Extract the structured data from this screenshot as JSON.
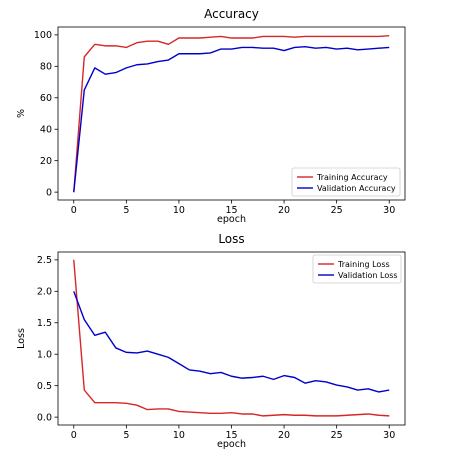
{
  "chart_data": [
    {
      "type": "line",
      "title": "Accuracy",
      "xlabel": "epoch",
      "ylabel": "%",
      "xlim": [
        0,
        30
      ],
      "ylim": [
        0,
        100
      ],
      "xticks": [
        0,
        5,
        10,
        15,
        20,
        25,
        30
      ],
      "yticks": [
        0,
        20,
        40,
        60,
        80,
        100
      ],
      "grid": false,
      "legend_position": "lower-right",
      "series": [
        {
          "name": "Training Accuracy",
          "color": "#d62728",
          "x": [
            0,
            1,
            2,
            3,
            4,
            5,
            6,
            7,
            8,
            9,
            10,
            11,
            12,
            13,
            14,
            15,
            16,
            17,
            18,
            19,
            20,
            21,
            22,
            23,
            24,
            25,
            26,
            27,
            28,
            29,
            30
          ],
          "values": [
            0,
            86,
            94,
            93,
            93,
            92,
            95,
            96,
            96,
            94,
            98,
            98,
            98,
            98.5,
            99,
            98,
            98,
            98,
            99,
            99,
            99,
            98.5,
            99,
            99,
            99,
            99,
            99,
            99,
            99,
            99,
            99.5
          ]
        },
        {
          "name": "Validation Accuracy",
          "color": "#0000cc",
          "x": [
            0,
            1,
            2,
            3,
            4,
            5,
            6,
            7,
            8,
            9,
            10,
            11,
            12,
            13,
            14,
            15,
            16,
            17,
            18,
            19,
            20,
            21,
            22,
            23,
            24,
            25,
            26,
            27,
            28,
            29,
            30
          ],
          "values": [
            0,
            65,
            79,
            75,
            76,
            79,
            81,
            81.5,
            83,
            84,
            88,
            88,
            88,
            88.5,
            91,
            91,
            92,
            92,
            91.5,
            91.5,
            90,
            92,
            92.5,
            91.5,
            92,
            91,
            91.5,
            90.5,
            91,
            91.5,
            92
          ]
        }
      ]
    },
    {
      "type": "line",
      "title": "Loss",
      "xlabel": "epoch",
      "ylabel": "Loss",
      "xlim": [
        0,
        30
      ],
      "ylim": [
        0,
        2.5
      ],
      "xticks": [
        0,
        5,
        10,
        15,
        20,
        25,
        30
      ],
      "yticks": [
        0.0,
        0.5,
        1.0,
        1.5,
        2.0,
        2.5
      ],
      "ytick_labels": [
        "0.0",
        "0.5",
        "1.0",
        "1.5",
        "2.0",
        "2.5"
      ],
      "grid": false,
      "legend_position": "top-right",
      "series": [
        {
          "name": "Training Loss",
          "color": "#d62728",
          "x": [
            0,
            1,
            2,
            3,
            4,
            5,
            6,
            7,
            8,
            9,
            10,
            11,
            12,
            13,
            14,
            15,
            16,
            17,
            18,
            19,
            20,
            21,
            22,
            23,
            24,
            25,
            26,
            27,
            28,
            29,
            30
          ],
          "values": [
            2.5,
            0.43,
            0.23,
            0.23,
            0.23,
            0.22,
            0.19,
            0.12,
            0.13,
            0.13,
            0.09,
            0.08,
            0.07,
            0.06,
            0.06,
            0.07,
            0.05,
            0.05,
            0.02,
            0.03,
            0.04,
            0.03,
            0.03,
            0.02,
            0.02,
            0.02,
            0.03,
            0.04,
            0.05,
            0.03,
            0.02
          ]
        },
        {
          "name": "Validation Loss",
          "color": "#0000cc",
          "x": [
            0,
            1,
            2,
            3,
            4,
            5,
            6,
            7,
            8,
            9,
            10,
            11,
            12,
            13,
            14,
            15,
            16,
            17,
            18,
            19,
            20,
            21,
            22,
            23,
            24,
            25,
            26,
            27,
            28,
            29,
            30
          ],
          "values": [
            2.0,
            1.55,
            1.3,
            1.35,
            1.1,
            1.03,
            1.02,
            1.05,
            1.0,
            0.95,
            0.85,
            0.75,
            0.73,
            0.69,
            0.71,
            0.65,
            0.62,
            0.63,
            0.65,
            0.6,
            0.66,
            0.63,
            0.54,
            0.58,
            0.56,
            0.51,
            0.48,
            0.43,
            0.45,
            0.4,
            0.43
          ]
        }
      ]
    }
  ]
}
